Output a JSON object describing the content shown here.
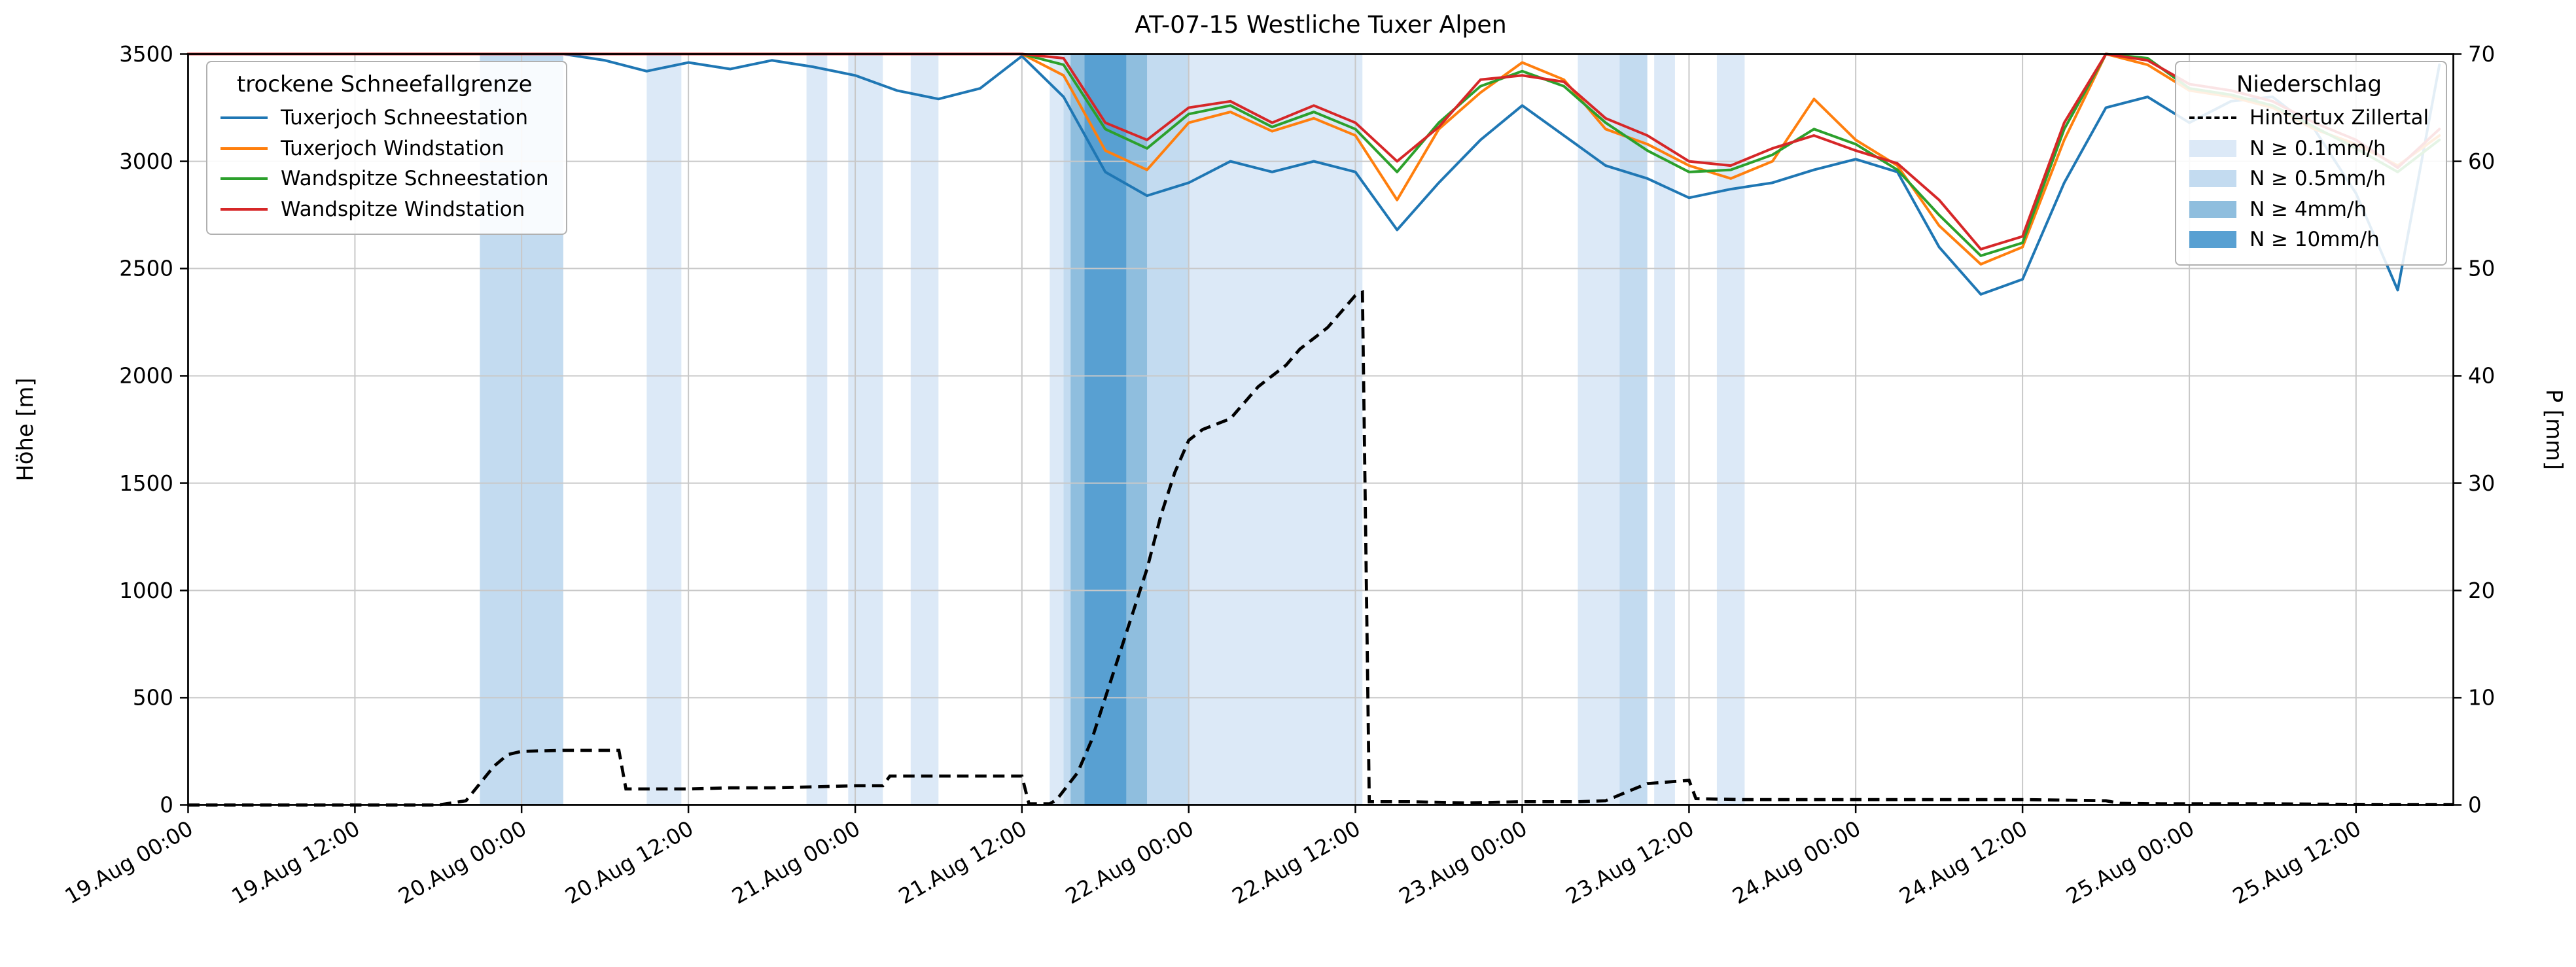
{
  "title": "AT-07-15 Westliche Tuxer Alpen",
  "axes": {
    "y_left_label": "Höhe [m]",
    "y_right_label": "P [mm]"
  },
  "legend_snowline": {
    "title": "trockene Schneefallgrenze",
    "items": [
      {
        "label": "Tuxerjoch Schneestation",
        "color": "#1f77b4"
      },
      {
        "label": "Tuxerjoch Windstation",
        "color": "#ff7f0e"
      },
      {
        "label": "Wandspitze Schneestation",
        "color": "#2ca02c"
      },
      {
        "label": "Wandspitze Windstation",
        "color": "#d62728"
      }
    ]
  },
  "legend_precip": {
    "title": "Niederschlag",
    "line_item": {
      "label": "Hintertux Zillertal",
      "color": "#000000"
    },
    "patch_items": [
      {
        "label": "N ≥ 0.1mm/h",
        "color": "#dce9f7"
      },
      {
        "label": "N ≥ 0.5mm/h",
        "color": "#c3dbf0"
      },
      {
        "label": "N ≥ 4mm/h",
        "color": "#8fbede"
      },
      {
        "label": "N ≥ 10mm/h",
        "color": "#58a0d2"
      }
    ]
  },
  "chart_data": {
    "type": "line",
    "title": "AT-07-15 Westliche Tuxer Alpen",
    "x_unit": "hours since 19.Aug 00:00",
    "x_range": [
      0,
      163
    ],
    "grid": true,
    "x_ticks": [
      {
        "t": 0,
        "label": "19.Aug 00:00"
      },
      {
        "t": 12,
        "label": "19.Aug 12:00"
      },
      {
        "t": 24,
        "label": "20.Aug 00:00"
      },
      {
        "t": 36,
        "label": "20.Aug 12:00"
      },
      {
        "t": 48,
        "label": "21.Aug 00:00"
      },
      {
        "t": 60,
        "label": "21.Aug 12:00"
      },
      {
        "t": 72,
        "label": "22.Aug 00:00"
      },
      {
        "t": 84,
        "label": "22.Aug 12:00"
      },
      {
        "t": 96,
        "label": "23.Aug 00:00"
      },
      {
        "t": 108,
        "label": "23.Aug 12:00"
      },
      {
        "t": 120,
        "label": "24.Aug 00:00"
      },
      {
        "t": 132,
        "label": "24.Aug 12:00"
      },
      {
        "t": 144,
        "label": "25.Aug 00:00"
      },
      {
        "t": 156,
        "label": "25.Aug 12:00"
      }
    ],
    "y_left": {
      "label": "Höhe [m]",
      "min": 0,
      "max": 3500,
      "ticks": [
        0,
        500,
        1000,
        1500,
        2000,
        2500,
        3000,
        3500
      ]
    },
    "y_right": {
      "label": "P [mm]",
      "min": 0,
      "max": 70,
      "ticks": [
        0,
        10,
        20,
        30,
        40,
        50,
        60,
        70
      ]
    },
    "x": [
      0,
      3,
      6,
      9,
      12,
      15,
      18,
      21,
      24,
      27,
      30,
      33,
      36,
      39,
      42,
      45,
      48,
      51,
      54,
      57,
      60,
      63,
      66,
      69,
      72,
      75,
      78,
      81,
      84,
      87,
      90,
      93,
      96,
      99,
      102,
      105,
      108,
      111,
      114,
      117,
      120,
      123,
      126,
      129,
      132,
      135,
      138,
      141,
      144,
      147,
      150,
      153,
      156,
      159,
      162
    ],
    "series": [
      {
        "name": "Tuxerjoch Schneestation",
        "color": "#1f77b4",
        "axis": "left",
        "values": [
          3500,
          3500,
          3500,
          3500,
          3500,
          3500,
          3500,
          3500,
          3500,
          3500,
          3470,
          3420,
          3460,
          3430,
          3470,
          3440,
          3400,
          3330,
          3290,
          3340,
          3490,
          3300,
          2950,
          2840,
          2900,
          3000,
          2950,
          3000,
          2950,
          2680,
          2900,
          3100,
          3260,
          3120,
          2980,
          2920,
          2830,
          2870,
          2900,
          2960,
          3010,
          2950,
          2600,
          2380,
          2450,
          2900,
          3250,
          3300,
          3180,
          3280,
          3300,
          3150,
          2850,
          2400,
          3450
        ]
      },
      {
        "name": "Tuxerjoch Windstation",
        "color": "#ff7f0e",
        "axis": "left",
        "values": [
          3500,
          3500,
          3500,
          3500,
          3500,
          3500,
          3500,
          3500,
          3500,
          3500,
          3500,
          3500,
          3500,
          3500,
          3500,
          3500,
          3500,
          3500,
          3500,
          3500,
          3500,
          3400,
          3050,
          2960,
          3180,
          3230,
          3140,
          3200,
          3120,
          2820,
          3150,
          3320,
          3460,
          3380,
          3150,
          3080,
          2980,
          2920,
          3000,
          3290,
          3100,
          2980,
          2700,
          2520,
          2600,
          3100,
          3500,
          3450,
          3330,
          3300,
          3250,
          3150,
          3080,
          2980,
          3120
        ]
      },
      {
        "name": "Wandspitze Schneestation",
        "color": "#2ca02c",
        "axis": "left",
        "values": [
          3500,
          3500,
          3500,
          3500,
          3500,
          3500,
          3500,
          3500,
          3500,
          3500,
          3500,
          3500,
          3500,
          3500,
          3500,
          3500,
          3500,
          3500,
          3500,
          3500,
          3500,
          3450,
          3150,
          3060,
          3220,
          3260,
          3160,
          3230,
          3150,
          2950,
          3180,
          3350,
          3420,
          3350,
          3180,
          3050,
          2950,
          2960,
          3030,
          3150,
          3080,
          2960,
          2750,
          2560,
          2620,
          3150,
          3500,
          3480,
          3340,
          3310,
          3260,
          3160,
          3060,
          2950,
          3100
        ]
      },
      {
        "name": "Wandspitze Windstation",
        "color": "#d62728",
        "axis": "left",
        "values": [
          3500,
          3500,
          3500,
          3500,
          3500,
          3500,
          3500,
          3500,
          3500,
          3500,
          3500,
          3500,
          3500,
          3500,
          3500,
          3500,
          3500,
          3500,
          3500,
          3500,
          3500,
          3480,
          3180,
          3100,
          3250,
          3280,
          3180,
          3260,
          3180,
          3000,
          3160,
          3380,
          3400,
          3370,
          3200,
          3120,
          3000,
          2980,
          3060,
          3120,
          3050,
          2990,
          2820,
          2590,
          2650,
          3180,
          3500,
          3470,
          3360,
          3330,
          3280,
          3180,
          3100,
          2970,
          3150
        ]
      }
    ],
    "precipitation_line": {
      "name": "Hintertux Zillertal",
      "axis": "right",
      "style": "dashed",
      "color": "#000000",
      "points": [
        [
          0,
          0
        ],
        [
          10,
          0
        ],
        [
          18,
          0
        ],
        [
          20,
          0.4
        ],
        [
          21,
          2.0
        ],
        [
          22,
          3.6
        ],
        [
          23,
          4.7
        ],
        [
          24,
          5.0
        ],
        [
          27,
          5.1
        ],
        [
          30,
          5.1
        ],
        [
          31,
          5.1
        ],
        [
          31.5,
          1.5
        ],
        [
          34,
          1.5
        ],
        [
          36,
          1.5
        ],
        [
          39,
          1.6
        ],
        [
          42,
          1.6
        ],
        [
          45,
          1.7
        ],
        [
          48,
          1.8
        ],
        [
          50,
          1.8
        ],
        [
          50.5,
          2.7
        ],
        [
          54,
          2.7
        ],
        [
          57,
          2.7
        ],
        [
          60,
          2.7
        ],
        [
          60.5,
          0.1
        ],
        [
          62,
          0.1
        ],
        [
          62.5,
          0.5
        ],
        [
          64,
          3
        ],
        [
          65,
          6
        ],
        [
          66,
          10
        ],
        [
          67,
          14
        ],
        [
          68,
          18
        ],
        [
          69,
          22
        ],
        [
          70,
          27
        ],
        [
          71,
          31
        ],
        [
          72,
          34
        ],
        [
          73,
          35
        ],
        [
          74,
          35.5
        ],
        [
          75,
          36
        ],
        [
          76,
          37.5
        ],
        [
          77,
          39
        ],
        [
          78,
          40
        ],
        [
          79,
          41
        ],
        [
          80,
          42.5
        ],
        [
          81,
          43.5
        ],
        [
          82,
          44.5
        ],
        [
          83,
          46
        ],
        [
          84,
          47.5
        ],
        [
          84.5,
          47.8
        ],
        [
          85,
          0.3
        ],
        [
          88,
          0.3
        ],
        [
          92,
          0.2
        ],
        [
          96,
          0.3
        ],
        [
          100,
          0.3
        ],
        [
          102,
          0.4
        ],
        [
          103.5,
          1.2
        ],
        [
          105,
          2.0
        ],
        [
          107,
          2.2
        ],
        [
          108,
          2.3
        ],
        [
          108.5,
          0.6
        ],
        [
          112,
          0.5
        ],
        [
          116,
          0.5
        ],
        [
          120,
          0.5
        ],
        [
          124,
          0.5
        ],
        [
          128,
          0.5
        ],
        [
          132,
          0.5
        ],
        [
          135,
          0.45
        ],
        [
          138,
          0.4
        ],
        [
          139,
          0.15
        ],
        [
          142,
          0.1
        ],
        [
          146,
          0.1
        ],
        [
          150,
          0.1
        ],
        [
          154,
          0.08
        ],
        [
          158,
          0.05
        ],
        [
          163,
          0.05
        ]
      ]
    },
    "band_levels": [
      {
        "label": "N ≥ 0.1mm/h",
        "color": "#dce9f7"
      },
      {
        "label": "N ≥ 0.5mm/h",
        "color": "#c3dbf0"
      },
      {
        "label": "N ≥ 4mm/h",
        "color": "#8fbede"
      },
      {
        "label": "N ≥ 10mm/h",
        "color": "#58a0d2"
      }
    ],
    "precip_bands": [
      {
        "start": 21,
        "end": 27,
        "level": "N ≥ 0.5mm/h"
      },
      {
        "start": 33,
        "end": 35.5,
        "level": "N ≥ 0.1mm/h"
      },
      {
        "start": 44.5,
        "end": 46,
        "level": "N ≥ 0.1mm/h"
      },
      {
        "start": 47.5,
        "end": 50,
        "level": "N ≥ 0.1mm/h"
      },
      {
        "start": 52,
        "end": 54,
        "level": "N ≥ 0.1mm/h"
      },
      {
        "start": 62,
        "end": 84.5,
        "level": "N ≥ 0.1mm/h"
      },
      {
        "start": 63,
        "end": 72,
        "level": "N ≥ 0.5mm/h"
      },
      {
        "start": 63.5,
        "end": 69,
        "level": "N ≥ 4mm/h"
      },
      {
        "start": 64.5,
        "end": 67.5,
        "level": "N ≥ 10mm/h"
      },
      {
        "start": 100,
        "end": 103,
        "level": "N ≥ 0.1mm/h"
      },
      {
        "start": 103,
        "end": 105,
        "level": "N ≥ 0.5mm/h"
      },
      {
        "start": 105.5,
        "end": 107,
        "level": "N ≥ 0.1mm/h"
      },
      {
        "start": 110,
        "end": 112,
        "level": "N ≥ 0.1mm/h"
      }
    ]
  }
}
